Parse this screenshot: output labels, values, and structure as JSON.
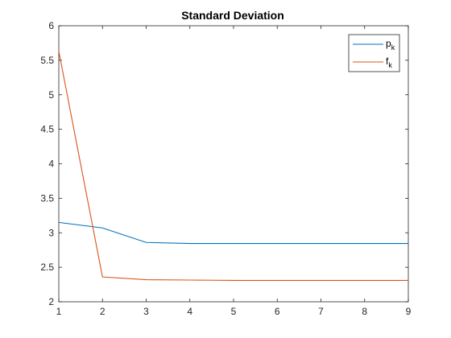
{
  "chart_data": {
    "type": "line",
    "title": "Standard Deviation",
    "xlabel": "",
    "ylabel": "",
    "x": [
      1,
      2,
      3,
      4,
      5,
      6,
      7,
      8,
      9
    ],
    "xlim": [
      1,
      9
    ],
    "ylim": [
      2,
      6
    ],
    "xticks": [
      1,
      2,
      3,
      4,
      5,
      6,
      7,
      8,
      9
    ],
    "yticks": [
      2,
      2.5,
      3,
      3.5,
      4,
      4.5,
      5,
      5.5,
      6
    ],
    "xtick_labels": [
      "1",
      "2",
      "3",
      "4",
      "5",
      "6",
      "7",
      "8",
      "9"
    ],
    "ytick_labels": [
      "2",
      "2.5",
      "3",
      "3.5",
      "4",
      "4.5",
      "5",
      "5.5",
      "6"
    ],
    "grid": false,
    "legend_position": "top-right",
    "series": [
      {
        "name_main": "p",
        "name_sub": "k",
        "color": "#0072BD",
        "values": [
          3.15,
          3.07,
          2.86,
          2.845,
          2.845,
          2.845,
          2.845,
          2.845,
          2.845
        ]
      },
      {
        "name_main": "f",
        "name_sub": "k",
        "color": "#D95319",
        "values": [
          5.63,
          2.36,
          2.32,
          2.315,
          2.31,
          2.31,
          2.31,
          2.31,
          2.31
        ]
      }
    ]
  }
}
